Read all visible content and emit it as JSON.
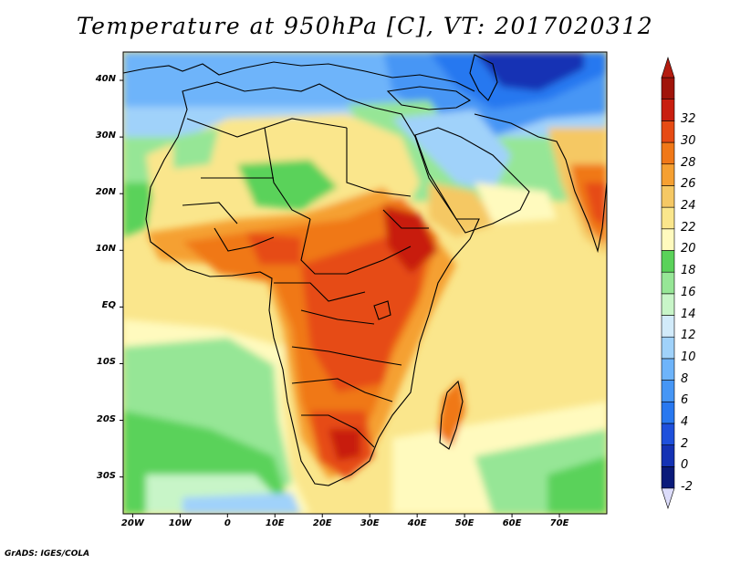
{
  "title": "Temperature at 950hPa [C], VT: 2017020312",
  "variable": "Temperature",
  "level": "950hPa",
  "units": "C",
  "valid_time": "2017020312",
  "map": {
    "lat_labels": [
      "40N",
      "30N",
      "20N",
      "10N",
      "EQ",
      "10S",
      "20S",
      "30S"
    ],
    "lat_values": [
      40,
      30,
      20,
      10,
      0,
      -10,
      -20,
      -30
    ],
    "lon_labels": [
      "20W",
      "10W",
      "0",
      "10E",
      "20E",
      "30E",
      "40E",
      "50E",
      "60E",
      "70E"
    ],
    "lon_values": [
      -20,
      -10,
      0,
      10,
      20,
      30,
      40,
      50,
      60,
      70
    ],
    "lat_range": [
      -36.5,
      45
    ],
    "lon_range": [
      -22,
      80
    ]
  },
  "colorbar": {
    "labels": [
      "-2",
      "0",
      "2",
      "4",
      "6",
      "8",
      "10",
      "12",
      "14",
      "16",
      "18",
      "20",
      "22",
      "24",
      "26",
      "28",
      "30",
      "32"
    ],
    "colors": [
      "#0a1a7a",
      "#1432b4",
      "#1e50dc",
      "#2878f0",
      "#4696f5",
      "#6eb4fa",
      "#a0d2fa",
      "#d2ebfa",
      "#c8f5c8",
      "#96e696",
      "#5ad25a",
      "#fffabe",
      "#fae68c",
      "#f5c864",
      "#f5a032",
      "#f07818",
      "#e64b14",
      "#c81e0f",
      "#a0140a"
    ],
    "under_color": "#dcdcfa",
    "over_color": "#b41c10"
  },
  "credit": "GrADS: IGES/COLA"
}
